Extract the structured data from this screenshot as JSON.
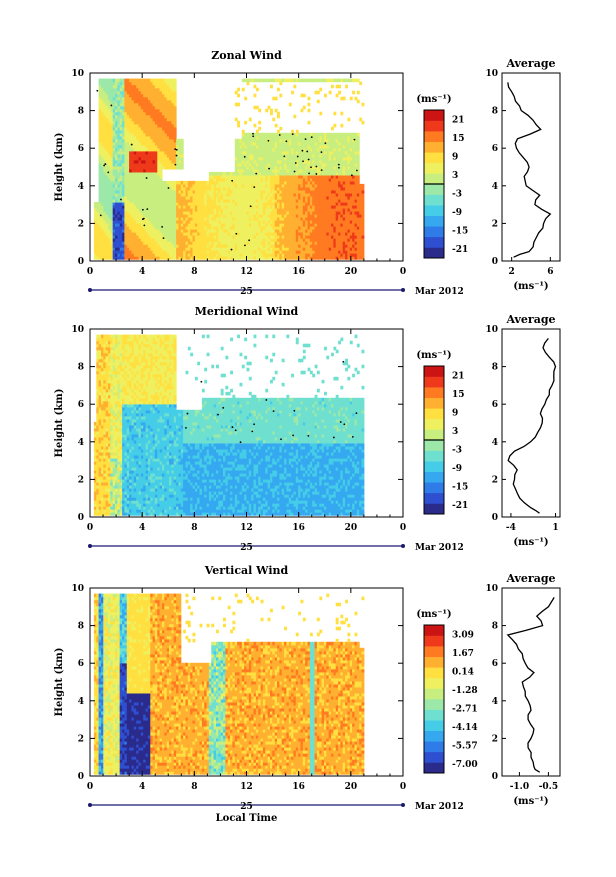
{
  "colors": {
    "palette": [
      "#2b2b8c",
      "#2e4fd0",
      "#2f7be8",
      "#35a8f0",
      "#45cde8",
      "#6fe0d0",
      "#9be8a8",
      "#c8ee80",
      "#eef060",
      "#ffe040",
      "#ffb030",
      "#ff7a20",
      "#ee3a1a",
      "#cc1414"
    ],
    "contour": "#000000",
    "axis": "#000000",
    "timebar": "#1a1a6e"
  },
  "chart_data": [
    {
      "type": "heatmap",
      "title": "Zonal Wind",
      "ylabel": "Height (km)",
      "xlabel": "",
      "x_ticks": [
        "0",
        "4",
        "8",
        "12",
        "16",
        "20",
        "0"
      ],
      "y_ticks": [
        "0",
        "2",
        "4",
        "6",
        "8",
        "10"
      ],
      "xlim": [
        0,
        24
      ],
      "ylim": [
        0,
        10
      ],
      "date_label": "25",
      "month_label": "Mar 2012",
      "colorbar": {
        "unit": "(ms⁻¹)",
        "ticks": [
          "21",
          "15",
          "9",
          "3",
          "-3",
          "-9",
          "-15",
          "-21"
        ],
        "range": [
          -24,
          24
        ]
      },
      "average": {
        "title": "Average",
        "xlabel": "(ms⁻¹)",
        "x_ticks": [
          "2",
          "6"
        ],
        "y_ticks": [
          "0",
          "2",
          "4",
          "6",
          "8",
          "10"
        ],
        "xlim": [
          1,
          7
        ],
        "heights": [
          0.2,
          0.5,
          1.0,
          1.5,
          2.0,
          2.5,
          3.0,
          3.5,
          4.0,
          4.5,
          5.0,
          5.5,
          6.0,
          6.5,
          7.0,
          7.5,
          8.0,
          8.5,
          9.0,
          9.5
        ],
        "values": [
          2.2,
          3.8,
          4.3,
          4.8,
          5.3,
          6.0,
          4.4,
          4.9,
          3.5,
          3.3,
          3.8,
          3.2,
          2.5,
          2.6,
          5.0,
          4.2,
          3.0,
          2.4,
          2.0,
          1.6
        ]
      }
    },
    {
      "type": "heatmap",
      "title": "Meridional Wind",
      "ylabel": "Height (km)",
      "xlabel": "",
      "x_ticks": [
        "0",
        "4",
        "8",
        "12",
        "16",
        "20",
        "0"
      ],
      "y_ticks": [
        "0",
        "2",
        "4",
        "6",
        "8",
        "10"
      ],
      "xlim": [
        0,
        24
      ],
      "ylim": [
        0,
        10
      ],
      "date_label": "25",
      "month_label": "Mar 2012",
      "colorbar": {
        "unit": "(ms⁻¹)",
        "ticks": [
          "21",
          "15",
          "9",
          "3",
          "-3",
          "-9",
          "-15",
          "-21"
        ],
        "range": [
          -24,
          24
        ]
      },
      "average": {
        "title": "Average",
        "xlabel": "(ms⁻¹)",
        "x_ticks": [
          "-4",
          "1"
        ],
        "y_ticks": [
          "0",
          "2",
          "4",
          "6",
          "8",
          "10"
        ],
        "xlim": [
          -5,
          1.5
        ],
        "heights": [
          0.2,
          0.5,
          1.0,
          1.5,
          2.0,
          2.5,
          3.0,
          3.5,
          4.0,
          4.5,
          5.0,
          5.5,
          6.0,
          6.5,
          7.0,
          7.5,
          8.0,
          8.5,
          9.0,
          9.5
        ],
        "values": [
          -0.8,
          -1.8,
          -3.0,
          -3.5,
          -3.6,
          -3.3,
          -4.3,
          -3.6,
          -1.8,
          -1.0,
          -0.5,
          -0.7,
          -0.2,
          0.3,
          0.6,
          0.8,
          1.0,
          0.3,
          -0.4,
          0.2
        ]
      }
    },
    {
      "type": "heatmap",
      "title": "Vertical Wind",
      "ylabel": "Height (km)",
      "xlabel": "Local Time",
      "x_ticks": [
        "0",
        "4",
        "8",
        "12",
        "16",
        "20",
        "0"
      ],
      "y_ticks": [
        "0",
        "2",
        "4",
        "6",
        "8",
        "10"
      ],
      "xlim": [
        0,
        24
      ],
      "ylim": [
        0,
        10
      ],
      "date_label": "25",
      "month_label": "Mar 2012",
      "colorbar": {
        "unit": "(ms⁻¹)",
        "ticks": [
          "3.09",
          "1.67",
          "0.14",
          "-1.28",
          "-2.71",
          "-4.14",
          "-5.57",
          "-7.00"
        ],
        "range": [
          -7.7,
          3.8
        ]
      },
      "average": {
        "title": "Average",
        "xlabel": "(ms⁻¹)",
        "x_ticks": [
          "-1.0",
          "-0.5"
        ],
        "y_ticks": [
          "0",
          "2",
          "4",
          "6",
          "8",
          "10"
        ],
        "xlim": [
          -1.3,
          -0.3
        ],
        "heights": [
          0.2,
          0.5,
          1.0,
          1.5,
          2.0,
          2.5,
          3.0,
          3.5,
          4.0,
          4.5,
          5.0,
          5.5,
          6.0,
          6.5,
          7.0,
          7.5,
          8.0,
          8.5,
          9.0,
          9.5
        ],
        "values": [
          -0.65,
          -0.75,
          -0.8,
          -0.85,
          -0.8,
          -0.75,
          -0.85,
          -0.8,
          -0.85,
          -0.9,
          -0.95,
          -0.75,
          -0.9,
          -0.95,
          -1.05,
          -1.2,
          -0.6,
          -0.7,
          -0.5,
          -0.4
        ]
      }
    }
  ]
}
